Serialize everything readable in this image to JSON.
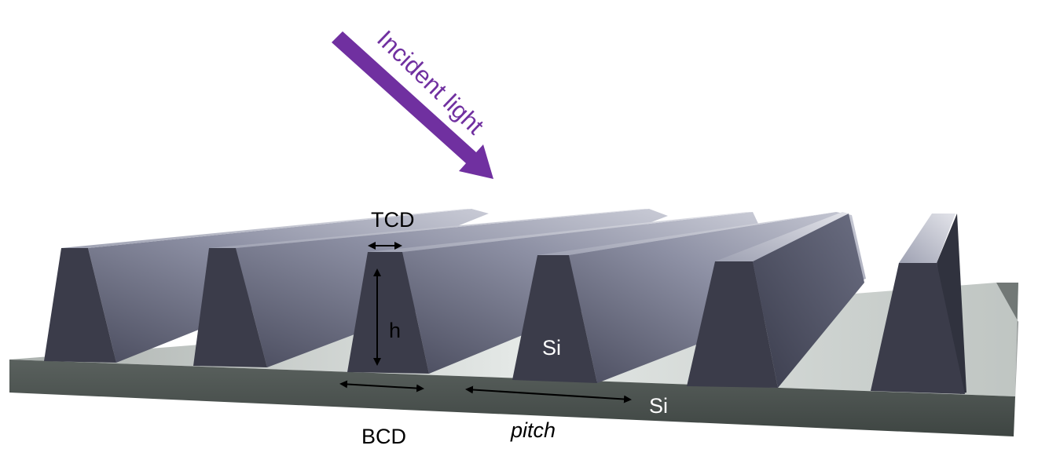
{
  "diagram": {
    "incident_label": "Incident light",
    "tcd_label": "TCD",
    "height_label": "h",
    "bcd_label": "BCD",
    "pitch_label": "pitch",
    "line_material_label": "Si",
    "substrate_material_label": "Si",
    "colors": {
      "arrow": "#7030a0",
      "line_face": "#3b3c4a",
      "substrate_side": "#4d5552",
      "substrate_top": "#d6dbd8",
      "white_text": "#ffffff",
      "black_text": "#000000"
    }
  }
}
